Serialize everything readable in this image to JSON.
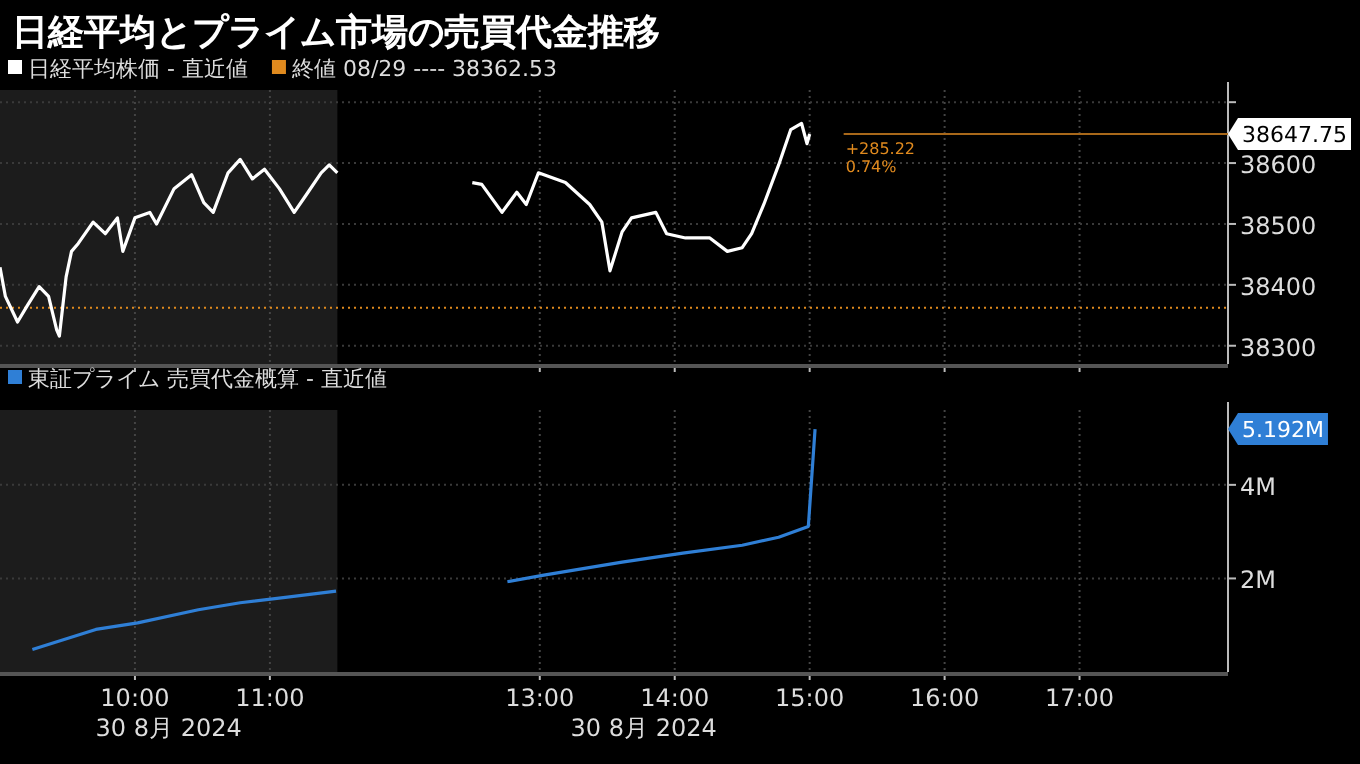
{
  "chart_data": [
    {
      "type": "line",
      "title": "日経平均とプライム市場の売買代金推移",
      "series": [
        {
          "name": "日経平均株価 - 直近値",
          "color": "#ffffff",
          "x": [
            9.0,
            9.04,
            9.13,
            9.2,
            9.29,
            9.36,
            9.42,
            9.44,
            9.49,
            9.53,
            9.58,
            9.69,
            9.78,
            9.87,
            9.91,
            10.0,
            10.11,
            10.16,
            10.29,
            10.42,
            10.51,
            10.58,
            10.69,
            10.78,
            10.87,
            10.96,
            11.07,
            11.18,
            11.27,
            11.38,
            11.44,
            11.5,
            12.0,
            12.5,
            12.57,
            12.72,
            12.83,
            12.9,
            12.99,
            13.19,
            13.37,
            13.46,
            13.52,
            13.61,
            13.68,
            13.86,
            13.94,
            14.08,
            14.26,
            14.39,
            14.5,
            14.57,
            14.66,
            14.77,
            14.86,
            14.94,
            14.98,
            15.0
          ],
          "values": [
            38429,
            38381,
            38339,
            38365,
            38397,
            38381,
            38326,
            38316,
            38413,
            38455,
            38468,
            38503,
            38484,
            38510,
            38455,
            38510,
            38519,
            38500,
            38558,
            38581,
            38535,
            38519,
            38584,
            38606,
            38574,
            38590,
            38558,
            38519,
            38548,
            38584,
            38597,
            38584,
            null,
            38568,
            38565,
            38519,
            38552,
            38532,
            38584,
            38568,
            38532,
            38503,
            38423,
            38487,
            38510,
            38519,
            38484,
            38477,
            38477,
            38455,
            38461,
            38484,
            38532,
            38597,
            38655,
            38665,
            38632,
            38647.75
          ]
        }
      ],
      "xlim": [
        9,
        18.1
      ],
      "xticks": [
        {
          "value": 10,
          "label": null
        },
        {
          "value": 11,
          "label": null
        },
        {
          "value": 13,
          "label": null
        },
        {
          "value": 14,
          "label": null
        },
        {
          "value": 15,
          "label": null
        },
        {
          "value": 16,
          "label": null
        },
        {
          "value": 17,
          "label": null
        }
      ],
      "ylim": [
        38270,
        38720
      ],
      "yticks": [
        38300,
        38400,
        38500,
        38600,
        {
          "value": 38700,
          "label": null
        }
      ],
      "tick_labels": "y",
      "grid": true,
      "legend": "top left",
      "marker": "none",
      "bands": [
        {
          "axis": "x",
          "from": 9,
          "to": 11.5,
          "color": "#1c1c1c"
        }
      ],
      "ref_lines": [
        {
          "axis": "y",
          "value": 38362.53,
          "label": "終値 08/29 ---- 38362.53",
          "color": "#e08a1e",
          "line_style": "dotted"
        },
        {
          "axis": "y",
          "value": 38647.75,
          "color": "#a8681a",
          "line_style": "solid"
        }
      ],
      "annotations": [
        "38647.75",
        "+285.22",
        "0.74%"
      ]
    },
    {
      "type": "line",
      "series": [
        {
          "name": "東証プライム 売買代金概算 - 直近値",
          "color": "#2f7fd6",
          "x": [
            9.24,
            9.71,
            10.02,
            10.47,
            10.78,
            11.13,
            11.49,
            12.0,
            12.76,
            13.03,
            13.61,
            14.06,
            14.5,
            14.77,
            14.99,
            15.04
          ],
          "values": [
            0.48,
            0.91,
            1.05,
            1.33,
            1.48,
            1.6,
            1.73,
            null,
            1.93,
            2.07,
            2.35,
            2.54,
            2.71,
            2.88,
            3.11,
            5.192
          ]
        }
      ],
      "xlim": [
        9,
        18.1
      ],
      "xticks": [
        {
          "value": 10,
          "label": "10:00"
        },
        {
          "value": 11,
          "label": "11:00"
        },
        {
          "value": 13,
          "label": "13:00"
        },
        {
          "value": 14,
          "label": "14:00"
        },
        {
          "value": 15,
          "label": "15:00"
        },
        {
          "value": 16,
          "label": "16:00"
        },
        {
          "value": 17,
          "label": "17:00"
        }
      ],
      "ylim": [
        0,
        5.6
      ],
      "yticks": [
        {
          "value": 2,
          "label": "2M"
        },
        {
          "value": 4,
          "label": "4M"
        }
      ],
      "grid": true,
      "legend": "top left",
      "marker": "none",
      "bands": [
        {
          "axis": "x",
          "from": 9,
          "to": 11.5,
          "color": "#1c1c1c"
        }
      ],
      "annotations": [
        "5.192M",
        "30 8月 2024",
        "30 8月 2024"
      ]
    }
  ]
}
